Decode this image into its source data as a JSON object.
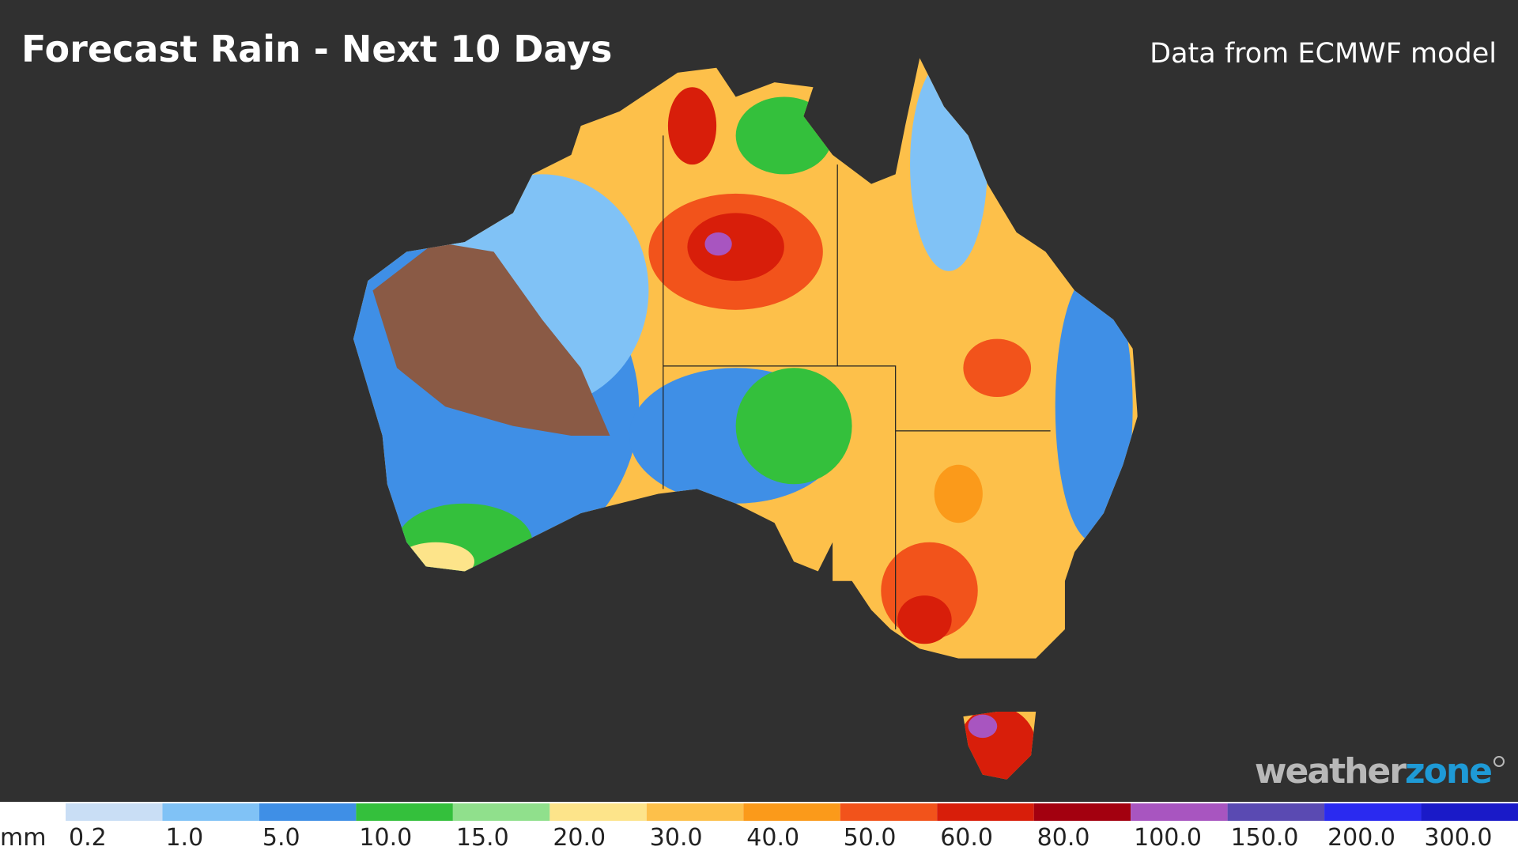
{
  "header": {
    "title": "Forecast Rain - Next 10 Days",
    "source": "Data from ECMWF model"
  },
  "logo": {
    "parts": [
      {
        "text": "weather",
        "color": "#b8b8b8"
      },
      {
        "text": "zone",
        "color": "#1e9ad6"
      }
    ]
  },
  "legend": {
    "unit": "mm",
    "items": [
      {
        "label": "0.2",
        "color": "#c9def5"
      },
      {
        "label": "1.0",
        "color": "#80c2f6"
      },
      {
        "label": "5.0",
        "color": "#3f8fe6"
      },
      {
        "label": "10.0",
        "color": "#34c03c"
      },
      {
        "label": "15.0",
        "color": "#90e08c"
      },
      {
        "label": "20.0",
        "color": "#fde48a"
      },
      {
        "label": "30.0",
        "color": "#fdc04a"
      },
      {
        "label": "40.0",
        "color": "#fb9a1a"
      },
      {
        "label": "50.0",
        "color": "#f2531b"
      },
      {
        "label": "60.0",
        "color": "#d81e0a"
      },
      {
        "label": "80.0",
        "color": "#a3000f"
      },
      {
        "label": "100.0",
        "color": "#a855c0"
      },
      {
        "label": "150.0",
        "color": "#5a4ab2"
      },
      {
        "label": "200.0",
        "color": "#2a2af0"
      },
      {
        "label": "300.0",
        "color": "#1a1ac8"
      }
    ]
  }
}
